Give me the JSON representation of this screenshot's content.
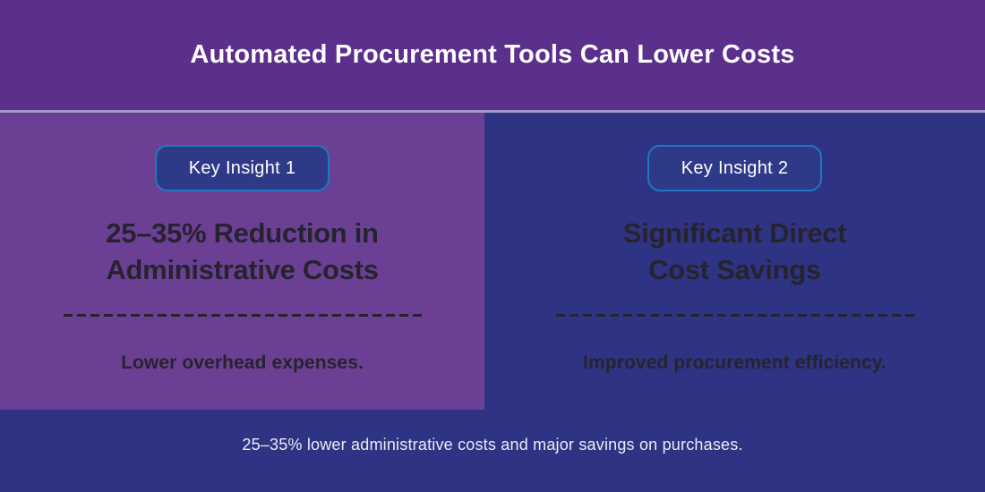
{
  "header": {
    "title": "Automated Procurement Tools Can Lower Costs"
  },
  "panels": [
    {
      "badge": "Key Insight 1",
      "heading_line1": "25–35% Reduction in",
      "heading_line2": "Administrative Costs",
      "subtext": "Lower overhead expenses."
    },
    {
      "badge": "Key Insight 2",
      "heading_line1": "Significant Direct",
      "heading_line2": "Cost Savings",
      "subtext": "Improved procurement efficiency."
    }
  ],
  "footer": {
    "summary": "25–35% lower administrative costs and major savings on purchases."
  },
  "colors": {
    "header": "#5B2F8C",
    "panel": "#6B4094",
    "navy": "#2E3483",
    "badgeFill": "#2E3A88",
    "badgeBorder": "#1F78C2",
    "textDark": "#26232E",
    "textLight": "#EDEBF5",
    "separator": "#A29BC8"
  }
}
